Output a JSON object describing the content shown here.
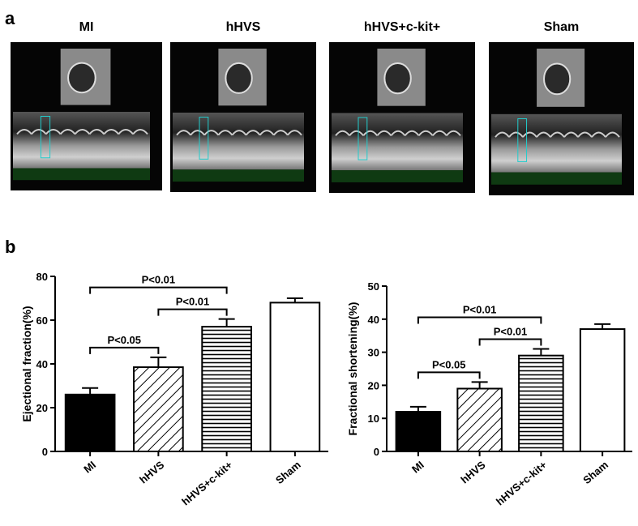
{
  "panel_a": {
    "label": "a",
    "images": [
      {
        "title": "MI"
      },
      {
        "title": "hHVS"
      },
      {
        "title": "hHVS+c-kit+"
      },
      {
        "title": "Sham"
      }
    ]
  },
  "panel_b": {
    "label": "b"
  },
  "chart_data": [
    {
      "type": "bar",
      "y_label": "Ejectional fraction(%)",
      "categories": [
        "MI",
        "hHVS",
        "hHVS+c-kit+",
        "Sham"
      ],
      "values": [
        26,
        38.5,
        57,
        68
      ],
      "errors": [
        3,
        4.5,
        3.5,
        2
      ],
      "patterns": [
        "solid",
        "diagonal",
        "horizontal",
        "none"
      ],
      "color": "#000000",
      "ylim": [
        0,
        80
      ],
      "yticks": [
        0,
        20,
        40,
        60,
        80
      ],
      "annotations": [
        {
          "text": "P<0.05",
          "from": 0,
          "to": 1
        },
        {
          "text": "P<0.01",
          "from": 1,
          "to": 2
        },
        {
          "text": "P<0.01",
          "from": 0,
          "to": 2
        }
      ]
    },
    {
      "type": "bar",
      "y_label": "Fractional shortening(%)",
      "categories": [
        "MI",
        "hHVS",
        "hHVS+c-kit+",
        "Sham"
      ],
      "values": [
        12,
        19,
        29,
        37
      ],
      "errors": [
        1.5,
        2,
        2,
        1.5
      ],
      "patterns": [
        "solid",
        "diagonal",
        "horizontal",
        "none"
      ],
      "color": "#000000",
      "ylim": [
        0,
        50
      ],
      "yticks": [
        0,
        10,
        20,
        30,
        40,
        50
      ],
      "annotations": [
        {
          "text": "P<0.05",
          "from": 0,
          "to": 1
        },
        {
          "text": "P<0.01",
          "from": 1,
          "to": 2
        },
        {
          "text": "P<0.01",
          "from": 0,
          "to": 2
        }
      ]
    }
  ]
}
